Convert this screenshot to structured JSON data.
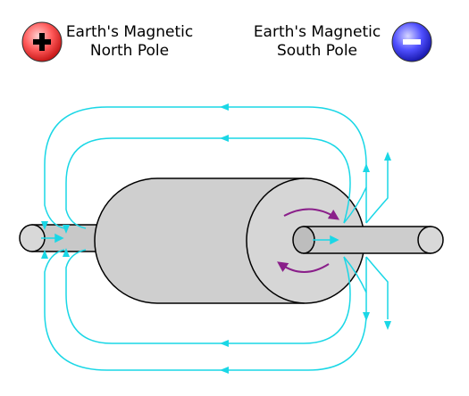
{
  "north_pole": {
    "line1": "Earth's Magnetic",
    "line2": "North Pole",
    "symbol": "+",
    "color": "#e83a3a"
  },
  "south_pole": {
    "line1": "Earth's Magnetic",
    "line2": "South Pole",
    "symbol": "−",
    "color": "#3b3bd6"
  },
  "colors": {
    "field_lines": "#1ad7e6",
    "rotation_arrows": "#8a1f8a",
    "body_fill": "#d0d0d0"
  },
  "icons": {
    "north": "plus-circle-icon",
    "south": "minus-circle-icon"
  }
}
